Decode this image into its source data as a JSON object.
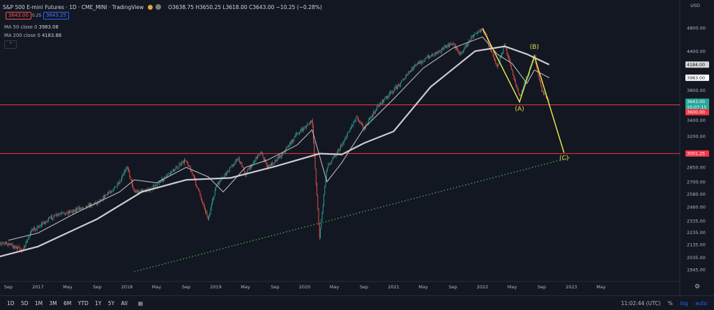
{
  "header": {
    "symbol": "S&P 500 E-mini Futures · 1D · CME_MINI · TradingView",
    "ohlc": "O3638.75 H3650.25 L3618.00 C3643.00 −10.25 (−0.28%)",
    "bid": "3643.00",
    "spread": "0.25",
    "ask": "3643.25",
    "icon_colors": [
      "#e8a93a",
      "#7a7a7a"
    ]
  },
  "indicators": [
    {
      "label": "MA 50 close 0",
      "value": "3983.08"
    },
    {
      "label": "MA 200 close 0",
      "value": "4183.88"
    }
  ],
  "currency": "USD",
  "collapse_icon": "chevron-up-icon",
  "timeframes": [
    "1D",
    "5D",
    "1M",
    "3M",
    "6M",
    "YTD",
    "1Y",
    "5Y",
    "All"
  ],
  "calendar_icon": "calendar-icon",
  "footer": {
    "time": "11:02:44 (UTC)",
    "percent": "%",
    "log": "log",
    "auto": "auto"
  },
  "settings_icon": "gear-icon",
  "colors": {
    "background": "#131722",
    "up": "#26a69a",
    "down": "#ef5350",
    "ma": "#d6d6d6",
    "wave": "#e6e04a",
    "hline": "#f23645",
    "trend": "#4caf50"
  },
  "chart_data": {
    "type": "candlestick",
    "log_scale": true,
    "grid": false,
    "y_ticks": [
      "4800.00",
      "4400.00",
      "3800.00",
      "3400.00",
      "3200.00",
      "2850.00",
      "2700.00",
      "2580.00",
      "2460.00",
      "2335.00",
      "2235.00",
      "2135.00",
      "2035.00",
      "1945.00"
    ],
    "y_tick_values": [
      4800,
      4400,
      3800,
      3400,
      3200,
      2850,
      2700,
      2580,
      2460,
      2335,
      2235,
      2135,
      2035,
      1945
    ],
    "x_ticks": [
      "Sep",
      "2017",
      "May",
      "Sep",
      "2018",
      "May",
      "Sep",
      "2019",
      "May",
      "Sep",
      "2020",
      "May",
      "Sep",
      "2021",
      "May",
      "Sep",
      "2022",
      "May",
      "Sep",
      "2023",
      "May"
    ],
    "x_tick_dates": [
      "2016-09",
      "2017-01",
      "2017-05",
      "2017-09",
      "2018-01",
      "2018-05",
      "2018-09",
      "2019-01",
      "2019-05",
      "2019-09",
      "2020-01",
      "2020-05",
      "2020-09",
      "2021-01",
      "2021-05",
      "2021-09",
      "2022-01",
      "2022-05",
      "2022-09",
      "2023-01",
      "2023-05"
    ],
    "price_path": [
      [
        "2016-07",
        2160
      ],
      [
        "2016-09",
        2140
      ],
      [
        "2016-11",
        2090
      ],
      [
        "2016-12",
        2240
      ],
      [
        "2017-03",
        2370
      ],
      [
        "2017-06",
        2430
      ],
      [
        "2017-09",
        2500
      ],
      [
        "2017-12",
        2680
      ],
      [
        "2018-01",
        2870
      ],
      [
        "2018-02",
        2600
      ],
      [
        "2018-04",
        2620
      ],
      [
        "2018-07",
        2800
      ],
      [
        "2018-09",
        2930
      ],
      [
        "2018-10",
        2750
      ],
      [
        "2018-12",
        2350
      ],
      [
        "2019-01",
        2650
      ],
      [
        "2019-04",
        2950
      ],
      [
        "2019-05",
        2780
      ],
      [
        "2019-07",
        3020
      ],
      [
        "2019-08",
        2850
      ],
      [
        "2019-10",
        3000
      ],
      [
        "2019-12",
        3230
      ],
      [
        "2020-02",
        3390
      ],
      [
        "2020-03",
        2200
      ],
      [
        "2020-04",
        2850
      ],
      [
        "2020-06",
        3100
      ],
      [
        "2020-08",
        3450
      ],
      [
        "2020-09",
        3300
      ],
      [
        "2020-11",
        3600
      ],
      [
        "2021-01",
        3800
      ],
      [
        "2021-04",
        4180
      ],
      [
        "2021-07",
        4400
      ],
      [
        "2021-09",
        4530
      ],
      [
        "2021-10",
        4350
      ],
      [
        "2021-12",
        4720
      ],
      [
        "2022-01",
        4790
      ],
      [
        "2022-03",
        4170
      ],
      [
        "2022-04",
        4500
      ],
      [
        "2022-06",
        3700
      ],
      [
        "2022-08",
        4320
      ],
      [
        "2022-09",
        3800
      ],
      [
        "2022-10",
        3640
      ]
    ],
    "ma_series": [
      {
        "name": "MA 50",
        "path": [
          [
            "2016-09",
            2170
          ],
          [
            "2017-01",
            2230
          ],
          [
            "2017-06",
            2400
          ],
          [
            "2017-12",
            2600
          ],
          [
            "2018-02",
            2720
          ],
          [
            "2018-05",
            2690
          ],
          [
            "2018-09",
            2850
          ],
          [
            "2018-12",
            2750
          ],
          [
            "2019-02",
            2600
          ],
          [
            "2019-05",
            2850
          ],
          [
            "2019-08",
            2930
          ],
          [
            "2019-12",
            3100
          ],
          [
            "2020-02",
            3280
          ],
          [
            "2020-04",
            2700
          ],
          [
            "2020-06",
            2900
          ],
          [
            "2020-09",
            3300
          ],
          [
            "2021-01",
            3680
          ],
          [
            "2021-05",
            4130
          ],
          [
            "2021-09",
            4450
          ],
          [
            "2022-01",
            4640
          ],
          [
            "2022-03",
            4350
          ],
          [
            "2022-05",
            4200
          ],
          [
            "2022-07",
            3900
          ],
          [
            "2022-08",
            4100
          ],
          [
            "2022-10",
            3983
          ]
        ]
      },
      {
        "name": "MA 200",
        "path": [
          [
            "2016-07",
            2030
          ],
          [
            "2017-01",
            2120
          ],
          [
            "2017-09",
            2350
          ],
          [
            "2018-03",
            2600
          ],
          [
            "2018-09",
            2720
          ],
          [
            "2019-03",
            2740
          ],
          [
            "2019-09",
            2860
          ],
          [
            "2020-03",
            3000
          ],
          [
            "2020-06",
            2990
          ],
          [
            "2020-09",
            3120
          ],
          [
            "2021-01",
            3260
          ],
          [
            "2021-06",
            3850
          ],
          [
            "2021-12",
            4400
          ],
          [
            "2022-04",
            4480
          ],
          [
            "2022-07",
            4350
          ],
          [
            "2022-10",
            4184
          ]
        ]
      }
    ],
    "price_badges": [
      {
        "label": "4184.00",
        "value": 4184,
        "kind": "ma200"
      },
      {
        "label": "3983.00",
        "value": 3983,
        "kind": "ma50"
      },
      {
        "label": "3643.00",
        "value": 3643,
        "kind": "last"
      },
      {
        "label": "10:07:15",
        "value": 3643,
        "kind": "countdown"
      },
      {
        "label": "3600.00",
        "value": 3600,
        "kind": "hline"
      },
      {
        "label": "3001.25",
        "value": 3001.25,
        "kind": "hline"
      }
    ],
    "horizontal_lines": [
      3600,
      3001.25
    ],
    "wave_path": [
      [
        "2022-01",
        4790
      ],
      [
        "2022-06",
        3640
      ],
      [
        "2022-08",
        4320
      ],
      [
        "2022-12",
        3010
      ]
    ],
    "wave_labels": [
      {
        "text": "(A)",
        "date": "2022-06",
        "value": 3520
      },
      {
        "text": "(B)",
        "date": "2022-08",
        "value": 4440
      },
      {
        "text": "(C)",
        "date": "2022-12",
        "value": 2930
      }
    ],
    "trendline": [
      [
        "2018-02",
        1930
      ],
      [
        "2023-01",
        2960
      ]
    ]
  }
}
